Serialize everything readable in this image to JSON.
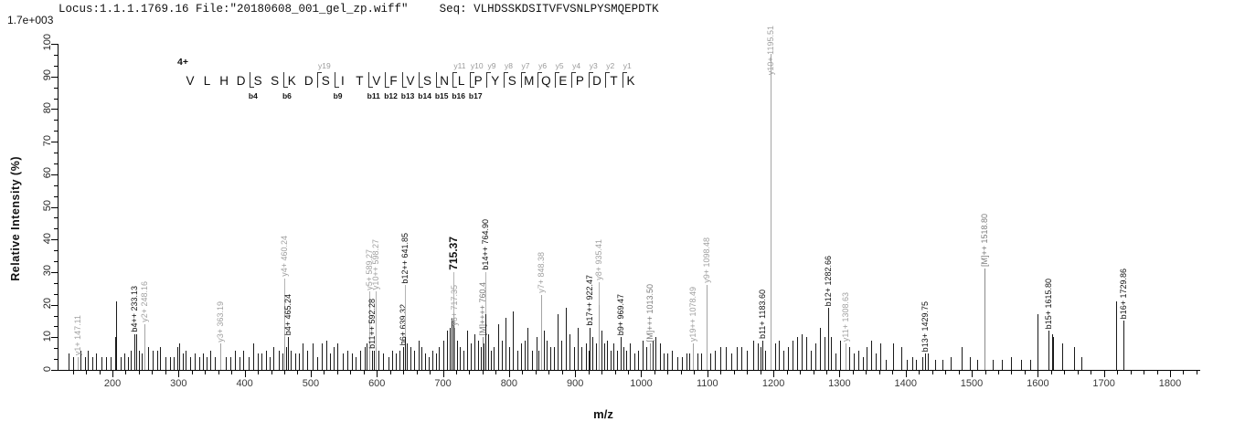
{
  "header": {
    "locus_file": "Locus:1.1.1.1769.16 File:\"20180608_001_gel_zp.wiff\"",
    "seq": "Seq: VLHDSSKDSITVFVSNLPYSMQEPDTK"
  },
  "scale_note": "1.7e+003",
  "y_axis": {
    "title": "Relative  Intensity (%)",
    "tick_labels": [
      0,
      10,
      20,
      30,
      40,
      50,
      60,
      70,
      80,
      90,
      100
    ]
  },
  "x_axis": {
    "title": "m/z",
    "tick_labels": [
      200,
      300,
      400,
      500,
      600,
      700,
      800,
      900,
      1000,
      1100,
      1200,
      1300,
      1400,
      1500,
      1600,
      1700,
      1800
    ],
    "minor_step": 20
  },
  "annotation": {
    "charge": "4+",
    "residues": [
      "V",
      "L",
      "H",
      "D",
      "S",
      "S",
      "K",
      "D",
      "S",
      "I",
      "T",
      "V",
      "F",
      "V",
      "S",
      "N",
      "L",
      "P",
      "Y",
      "S",
      "M",
      "Q",
      "E",
      "P",
      "D",
      "T",
      "K"
    ],
    "boundaries": [
      {
        "after": 4,
        "b": "b4"
      },
      {
        "after": 6,
        "b": "b6"
      },
      {
        "after": 8,
        "y": "y19"
      },
      {
        "after": 9,
        "b": "b9"
      },
      {
        "after": 11,
        "b": "b11"
      },
      {
        "after": 12,
        "b": "b12"
      },
      {
        "after": 13,
        "b": "b13"
      },
      {
        "after": 14,
        "b": "b14"
      },
      {
        "after": 15,
        "b": "b15"
      },
      {
        "after": 16,
        "b": "b16",
        "y": "y11"
      },
      {
        "after": 17,
        "b": "b17",
        "y": "y10"
      },
      {
        "after": 18,
        "y": "y9"
      },
      {
        "after": 19,
        "y": "y8"
      },
      {
        "after": 20,
        "y": "y7"
      },
      {
        "after": 21,
        "y": "y6"
      },
      {
        "after": 22,
        "y": "y5"
      },
      {
        "after": 23,
        "y": "y4"
      },
      {
        "after": 24,
        "y": "y3"
      },
      {
        "after": 25,
        "y": "y2"
      },
      {
        "after": 26,
        "y": "y1"
      }
    ]
  },
  "colors": {
    "b_ion": "#1a1a1a",
    "y_ion": "#a4a4a4",
    "parent_ion": "#8a8a8a",
    "precursor": "#111111",
    "leader": "#b4b4b4",
    "axis": "#000000"
  },
  "chart_data": {
    "type": "bar",
    "title": "MS/MS fragmentation spectrum",
    "xlabel": "m/z",
    "ylabel": "Relative  Intensity (%)",
    "xlim": [
      117,
      1845
    ],
    "ylim": [
      0,
      100
    ],
    "intensity_scale": "1.7e+003",
    "labeled_peaks": [
      {
        "mz": 147.11,
        "label": "y1+ 147.11",
        "ion": "y",
        "h": 4
      },
      {
        "mz": 233.13,
        "label": "b4++ 233.13",
        "ion": "b",
        "h": 11
      },
      {
        "mz": 248.16,
        "label": "y2+ 248.16",
        "ion": "y",
        "h": 14
      },
      {
        "mz": 363.19,
        "label": "y3+ 363.19",
        "ion": "y",
        "h": 8
      },
      {
        "mz": 460.24,
        "label": "y4+ 460.24",
        "ion": "y",
        "h": 10,
        "lp": 28
      },
      {
        "mz": 465.24,
        "label": "b4+ 465.24",
        "ion": "b",
        "h": 10
      },
      {
        "mz": 589.27,
        "label": "y5+ 589.27",
        "ion": "y",
        "h": 6,
        "lp": 24
      },
      {
        "mz": 592.28,
        "label": "b11++ 592.28",
        "ion": "b",
        "h": 6
      },
      {
        "mz": 598.27,
        "label": "y10++ 598.27",
        "ion": "y",
        "h": 7,
        "lp": 24
      },
      {
        "mz": 639.32,
        "label": "b6+ 639.32",
        "ion": "b",
        "h": 7
      },
      {
        "mz": 641.85,
        "label": "b12++ 641.85",
        "ion": "b",
        "h": 10,
        "lp": 26
      },
      {
        "mz": 715.37,
        "label": "715.37",
        "ion": "prec",
        "h": 16,
        "lp": 30
      },
      {
        "mz": 717.35,
        "label": "y6+ 717.35",
        "ion": "y",
        "h": 13
      },
      {
        "mz": 760.4,
        "label": "[M]++++ 760.4",
        "ion": "M",
        "h": 10
      },
      {
        "mz": 764.9,
        "label": "b14++ 764.90",
        "ion": "b",
        "h": 17,
        "lp": 30
      },
      {
        "mz": 848.38,
        "label": "y7+ 848.38",
        "ion": "y",
        "h": 23
      },
      {
        "mz": 922.47,
        "label": "b17++ 922.47",
        "ion": "b",
        "h": 13
      },
      {
        "mz": 935.41,
        "label": "y8+ 935.41",
        "ion": "y",
        "h": 20,
        "lp": 27
      },
      {
        "mz": 969.47,
        "label": "b9+ 969.47",
        "ion": "b",
        "h": 10
      },
      {
        "mz": 1013.5,
        "label": "[M]+++ 1013.50",
        "ion": "M",
        "h": 8
      },
      {
        "mz": 1078.49,
        "label": "y19++ 1078.49",
        "ion": "y",
        "h": 8
      },
      {
        "mz": 1098.48,
        "label": "y9+ 1098.48",
        "ion": "y",
        "h": 26
      },
      {
        "mz": 1183.6,
        "label": "b11+ 1183.60",
        "ion": "b",
        "h": 9
      },
      {
        "mz": 1195.51,
        "label": "y10+ 1195.51",
        "ion": "y",
        "h": 97,
        "lp": 90
      },
      {
        "mz": 1282.66,
        "label": "b12+ 1282.66",
        "ion": "b",
        "h": 19
      },
      {
        "mz": 1308.63,
        "label": "y11+ 1308.63",
        "ion": "y",
        "h": 8
      },
      {
        "mz": 1429.75,
        "label": "b13+ 1429.75",
        "ion": "b",
        "h": 5
      },
      {
        "mz": 1518.8,
        "label": "[M]++ 1518.80",
        "ion": "M",
        "h": 31
      },
      {
        "mz": 1615.8,
        "label": "b15+ 1615.80",
        "ion": "b",
        "h": 12
      },
      {
        "mz": 1729.86,
        "label": "b16+ 1729.86",
        "ion": "b",
        "h": 15
      }
    ],
    "background_peaks": [
      [
        134,
        5
      ],
      [
        140,
        4
      ],
      [
        152,
        6
      ],
      [
        158,
        4
      ],
      [
        163,
        6
      ],
      [
        170,
        4
      ],
      [
        175,
        5
      ],
      [
        183,
        4
      ],
      [
        190,
        4
      ],
      [
        197,
        4
      ],
      [
        204,
        10
      ],
      [
        205.6,
        21
      ],
      [
        212,
        4
      ],
      [
        218,
        5
      ],
      [
        224,
        4
      ],
      [
        228,
        6
      ],
      [
        236,
        11
      ],
      [
        240,
        6
      ],
      [
        244,
        5
      ],
      [
        254,
        7
      ],
      [
        261,
        6
      ],
      [
        268,
        6
      ],
      [
        272,
        7
      ],
      [
        280,
        4
      ],
      [
        287,
        4
      ],
      [
        293,
        4
      ],
      [
        298,
        7
      ],
      [
        301,
        8
      ],
      [
        306,
        5
      ],
      [
        311,
        6
      ],
      [
        318,
        4
      ],
      [
        325,
        5
      ],
      [
        331,
        4
      ],
      [
        337,
        5
      ],
      [
        343,
        4
      ],
      [
        348,
        6
      ],
      [
        355,
        4
      ],
      [
        372,
        4
      ],
      [
        378,
        4
      ],
      [
        385,
        6
      ],
      [
        392,
        4
      ],
      [
        398,
        6
      ],
      [
        406,
        4
      ],
      [
        413,
        8
      ],
      [
        420,
        5
      ],
      [
        426,
        5
      ],
      [
        432,
        6
      ],
      [
        438,
        4
      ],
      [
        444,
        7
      ],
      [
        452,
        6
      ],
      [
        457,
        5
      ],
      [
        463,
        7
      ],
      [
        470,
        6
      ],
      [
        476,
        5
      ],
      [
        482,
        5
      ],
      [
        488,
        8
      ],
      [
        495,
        6
      ],
      [
        503,
        8
      ],
      [
        510,
        4
      ],
      [
        517,
        8
      ],
      [
        524,
        9
      ],
      [
        529,
        5
      ],
      [
        535,
        7
      ],
      [
        540,
        8
      ],
      [
        548,
        5
      ],
      [
        556,
        6
      ],
      [
        562,
        5
      ],
      [
        568,
        4
      ],
      [
        575,
        6
      ],
      [
        581,
        7
      ],
      [
        585,
        8
      ],
      [
        596,
        6
      ],
      [
        603,
        6
      ],
      [
        610,
        5
      ],
      [
        617,
        4
      ],
      [
        623,
        6
      ],
      [
        628,
        5
      ],
      [
        634,
        6
      ],
      [
        645,
        8
      ],
      [
        651,
        7
      ],
      [
        657,
        6
      ],
      [
        663,
        9
      ],
      [
        668,
        7
      ],
      [
        673,
        5
      ],
      [
        678,
        4
      ],
      [
        684,
        6
      ],
      [
        689,
        5
      ],
      [
        694,
        7
      ],
      [
        700,
        9
      ],
      [
        706,
        12
      ],
      [
        710,
        13
      ],
      [
        713,
        16
      ],
      [
        721,
        9
      ],
      [
        726,
        7
      ],
      [
        731,
        6
      ],
      [
        736,
        12
      ],
      [
        742,
        8
      ],
      [
        748,
        11
      ],
      [
        753,
        9
      ],
      [
        757,
        7
      ],
      [
        762,
        8
      ],
      [
        768,
        11
      ],
      [
        772,
        6
      ],
      [
        777,
        7
      ],
      [
        783,
        14
      ],
      [
        789,
        9
      ],
      [
        795,
        16
      ],
      [
        800,
        7
      ],
      [
        806,
        18
      ],
      [
        812,
        6
      ],
      [
        818,
        8
      ],
      [
        823,
        9
      ],
      [
        828,
        13
      ],
      [
        835,
        6
      ],
      [
        841,
        10
      ],
      [
        845,
        6
      ],
      [
        853,
        12
      ],
      [
        857,
        9
      ],
      [
        862,
        7
      ],
      [
        868,
        7
      ],
      [
        874,
        17
      ],
      [
        879,
        9
      ],
      [
        886,
        19
      ],
      [
        892,
        11
      ],
      [
        898,
        7
      ],
      [
        904,
        13
      ],
      [
        910,
        7
      ],
      [
        916,
        8
      ],
      [
        920,
        6
      ],
      [
        926,
        10
      ],
      [
        931,
        8
      ],
      [
        940,
        12
      ],
      [
        944,
        8
      ],
      [
        948,
        9
      ],
      [
        953,
        6
      ],
      [
        958,
        8
      ],
      [
        963,
        6
      ],
      [
        973,
        7
      ],
      [
        977,
        6
      ],
      [
        983,
        8
      ],
      [
        989,
        5
      ],
      [
        995,
        6
      ],
      [
        1002,
        9
      ],
      [
        1007,
        7
      ],
      [
        1017,
        9
      ],
      [
        1022,
        10
      ],
      [
        1028,
        8
      ],
      [
        1034,
        5
      ],
      [
        1040,
        5
      ],
      [
        1047,
        6
      ],
      [
        1054,
        4
      ],
      [
        1062,
        4
      ],
      [
        1068,
        5
      ],
      [
        1073,
        5
      ],
      [
        1085,
        5
      ],
      [
        1091,
        5
      ],
      [
        1105,
        5
      ],
      [
        1112,
        6
      ],
      [
        1120,
        7
      ],
      [
        1128,
        7
      ],
      [
        1136,
        5
      ],
      [
        1144,
        7
      ],
      [
        1152,
        7
      ],
      [
        1160,
        6
      ],
      [
        1170,
        9
      ],
      [
        1176,
        8
      ],
      [
        1180,
        7
      ],
      [
        1188,
        6
      ],
      [
        1202,
        8
      ],
      [
        1208,
        9
      ],
      [
        1215,
        6
      ],
      [
        1222,
        7
      ],
      [
        1229,
        9
      ],
      [
        1236,
        10
      ],
      [
        1243,
        11
      ],
      [
        1250,
        10
      ],
      [
        1256,
        6
      ],
      [
        1263,
        8
      ],
      [
        1270,
        13
      ],
      [
        1277,
        10
      ],
      [
        1287,
        10
      ],
      [
        1294,
        5
      ],
      [
        1301,
        9
      ],
      [
        1315,
        7
      ],
      [
        1321,
        5
      ],
      [
        1328,
        6
      ],
      [
        1335,
        4
      ],
      [
        1341,
        7
      ],
      [
        1348,
        9
      ],
      [
        1355,
        5
      ],
      [
        1361,
        8
      ],
      [
        1370,
        3
      ],
      [
        1381,
        8
      ],
      [
        1394,
        7
      ],
      [
        1402,
        3
      ],
      [
        1410,
        4
      ],
      [
        1416,
        3
      ],
      [
        1425,
        4
      ],
      [
        1433,
        5
      ],
      [
        1445,
        3
      ],
      [
        1455,
        3
      ],
      [
        1468,
        4
      ],
      [
        1485,
        7
      ],
      [
        1497,
        4
      ],
      [
        1508,
        3
      ],
      [
        1532,
        3
      ],
      [
        1545,
        3
      ],
      [
        1560,
        4
      ],
      [
        1575,
        3
      ],
      [
        1589,
        3
      ],
      [
        1600,
        17
      ],
      [
        1621,
        11
      ],
      [
        1623,
        10
      ],
      [
        1637,
        8
      ],
      [
        1655,
        7
      ],
      [
        1666,
        4
      ],
      [
        1718,
        21
      ]
    ]
  }
}
